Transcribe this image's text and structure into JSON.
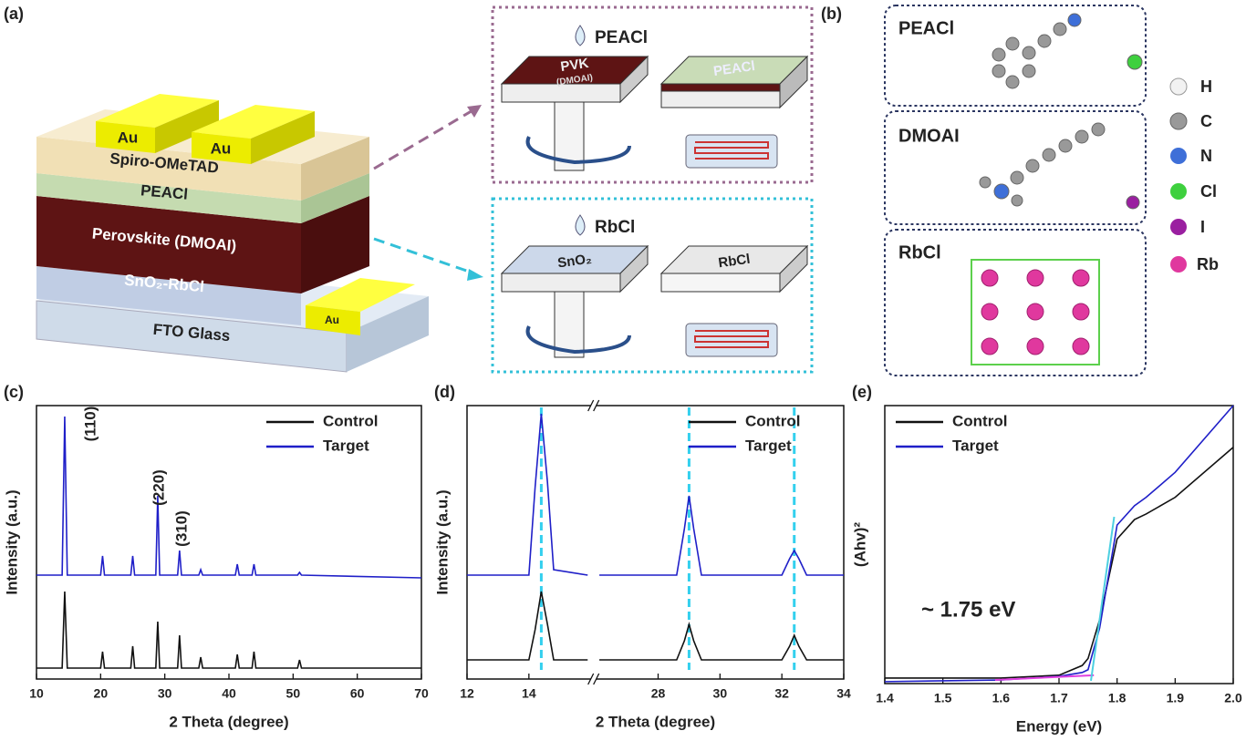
{
  "diagram": {
    "a": {
      "label": "(a)",
      "layers": [
        "Spiro-OMeTAD",
        "PEACl",
        "Perovskite (DMOAI)",
        "SnO₂-RbCl",
        "FTO Glass"
      ],
      "electrodes": [
        "Au",
        "Au",
        "Au"
      ],
      "top_inset": {
        "drop": "PEACl",
        "plate1": "PVK",
        "plate1_sub": "(DMOAI)",
        "plate2": "PEACl"
      },
      "bottom_inset": {
        "drop": "RbCl",
        "plate1": "SnO₂",
        "plate2": "RbCl"
      }
    },
    "b": {
      "label": "(b)",
      "molecules": [
        "PEACl",
        "DMOAI",
        "RbCl"
      ],
      "atoms": [
        "H",
        "C",
        "N",
        "Cl",
        "I",
        "Rb"
      ]
    }
  },
  "chart_data": [
    {
      "type": "line",
      "panel_label": "(c)",
      "xlabel": "2 Theta (degree)",
      "ylabel": "Intensity (a.u.)",
      "xlim": [
        10,
        70
      ],
      "xticks": [
        10,
        20,
        30,
        40,
        50,
        60,
        70
      ],
      "ylim": [
        0,
        100
      ],
      "legend": "upper right",
      "peak_labels": [
        "(110)",
        "(220)",
        "(310)"
      ],
      "x": [
        10,
        14.0,
        14.4,
        14.8,
        20.0,
        20.3,
        20.6,
        24.7,
        25.0,
        25.3,
        28.6,
        28.9,
        29.2,
        32.0,
        32.3,
        32.6,
        35.3,
        35.6,
        35.9,
        41.0,
        41.3,
        41.6,
        43.6,
        43.9,
        44.2,
        50.7,
        51.0,
        51.3,
        70
      ],
      "series": [
        {
          "name": "Control",
          "color": "#111111",
          "values": [
            4,
            4,
            32,
            4,
            4,
            10,
            4,
            4,
            12,
            4,
            4,
            21,
            4,
            4,
            16,
            4,
            4,
            8,
            4,
            4,
            9,
            4,
            4,
            10,
            4,
            4,
            7,
            4,
            4
          ]
        },
        {
          "name": "Target",
          "color": "#1f1fc8",
          "values": [
            38,
            38,
            96,
            38,
            38,
            45,
            38,
            38,
            45,
            38,
            38,
            67,
            38,
            38,
            47,
            38,
            38,
            40,
            38,
            38,
            42,
            38,
            38,
            42,
            38,
            38,
            39,
            38,
            37
          ]
        }
      ]
    },
    {
      "type": "line",
      "panel_label": "(d)",
      "xlabel": "2 Theta (degree)",
      "ylabel": "Intensity (a.u.)",
      "xlim": [
        12,
        34
      ],
      "xbreak": [
        16,
        26
      ],
      "xticks": [
        12,
        14,
        28,
        30,
        32,
        34
      ],
      "ylim": [
        0,
        100
      ],
      "legend": "upper right",
      "reference_lines": [
        14.4,
        29.0,
        32.4
      ],
      "reference_color": "#33d0ee",
      "x": [
        12,
        14.0,
        14.2,
        14.4,
        14.6,
        14.8,
        15.9,
        26.1,
        28.6,
        28.85,
        29.0,
        29.15,
        29.4,
        32.0,
        32.25,
        32.4,
        32.55,
        32.8,
        34
      ],
      "series": [
        {
          "name": "Control",
          "color": "#111111",
          "values": [
            7,
            7,
            18,
            32,
            20,
            7,
            7,
            7,
            7,
            14,
            20,
            14,
            7,
            7,
            12,
            16,
            12,
            7,
            7
          ]
        },
        {
          "name": "Target",
          "color": "#1f1fc8",
          "values": [
            38,
            38,
            70,
            97,
            72,
            40,
            38,
            38,
            38,
            55,
            67,
            55,
            38,
            38,
            44,
            47,
            44,
            38,
            38
          ]
        }
      ]
    },
    {
      "type": "line",
      "panel_label": "(e)",
      "xlabel": "Energy (eV)",
      "ylabel": "(Ahv)²",
      "annotation": "~ 1.75 eV",
      "xlim": [
        1.4,
        2.0
      ],
      "xticks": [
        1.4,
        1.5,
        1.6,
        1.7,
        1.8,
        1.9,
        {
          "value": 2.0,
          "label": "2.0"
        }
      ],
      "ylim": [
        0,
        100
      ],
      "legend": "upper left",
      "x": [
        1.4,
        1.6,
        1.7,
        1.74,
        1.75,
        1.77,
        1.8,
        1.83,
        1.85,
        1.9,
        2.0
      ],
      "series": [
        {
          "name": "Control",
          "color": "#111111",
          "values": [
            2,
            2,
            3,
            6.5,
            9,
            23,
            52,
            59,
            61,
            67,
            85
          ]
        },
        {
          "name": "Target",
          "color": "#1f1fc8",
          "values": [
            0.7,
            1.3,
            2.6,
            4,
            5,
            20,
            57,
            64,
            67,
            76,
            100
          ]
        }
      ],
      "fit_lines": [
        {
          "color": "#e040e0",
          "x": [
            1.59,
            1.76
          ],
          "values": [
            1.3,
            3
          ]
        },
        {
          "color": "#4dd0e1",
          "x": [
            1.755,
            1.795
          ],
          "values": [
            1,
            60
          ]
        }
      ]
    }
  ]
}
